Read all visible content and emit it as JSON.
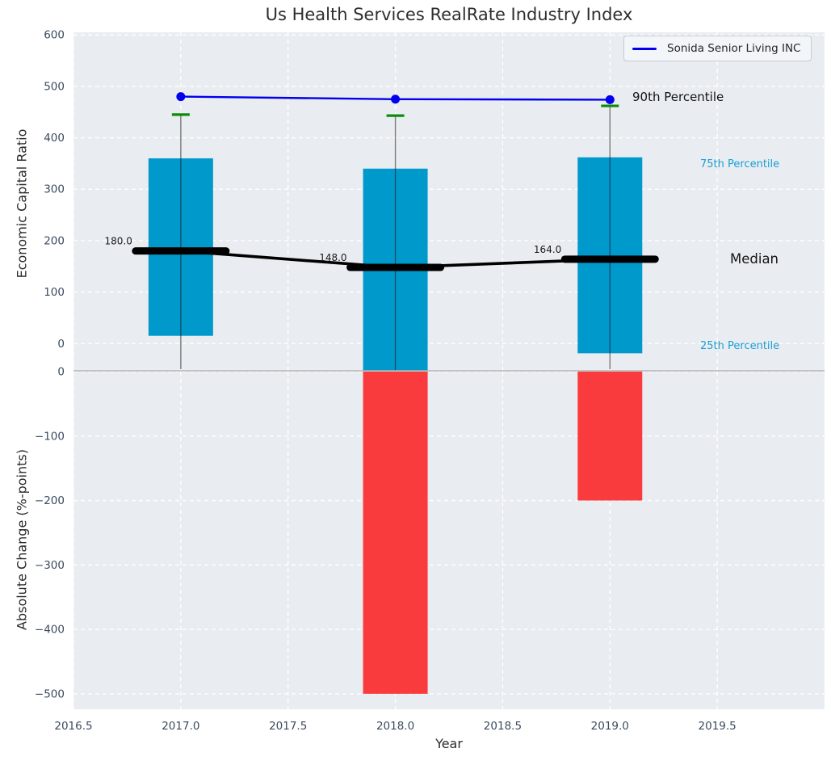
{
  "title": "Us Health Services RealRate Industry Index",
  "legend": {
    "label": "Sonida Senior Living INC"
  },
  "axes": {
    "x": {
      "label": "Year",
      "ticks": [
        "2016.5",
        "2017.0",
        "2017.5",
        "2018.0",
        "2018.5",
        "2019.0",
        "2019.5"
      ],
      "tick_values": [
        2016.5,
        2017,
        2017.5,
        2018,
        2018.5,
        2019,
        2019.5
      ],
      "range": [
        2016.5,
        2020.0
      ]
    },
    "top_y": {
      "label": "Economic Capital Ratio",
      "ticks": [
        "600",
        "500",
        "400",
        "300",
        "200",
        "100",
        "0"
      ],
      "tick_values": [
        600,
        500,
        400,
        300,
        200,
        100,
        0
      ]
    },
    "bottom_y": {
      "label": "Absolute Change (%-points)",
      "ticks": [
        "0",
        "−100",
        "−200",
        "−300",
        "−400",
        "−500"
      ],
      "tick_values": [
        0,
        -100,
        -200,
        -300,
        -400,
        -500
      ]
    }
  },
  "side_annotations": {
    "p90": "90th Percentile",
    "p75": "75th Percentile",
    "median": "Median",
    "p25": "25th Percentile"
  },
  "colors": {
    "box": "#0099cc",
    "box_center_line": "#14506e",
    "bar_negative": "#fa3b3e",
    "company_line": "#0000ee",
    "p90_cap": "#0a8c0a",
    "median_line": "#000000",
    "whisker": "#7a7a7a",
    "plot_bg": "#e9edf1",
    "grid": "#ffffff",
    "boundary": "#b4b4b4",
    "tick_text": "#3b4a5f",
    "percentile_label": "#1a9fd2",
    "annotation_text": "#1a1a1a"
  },
  "chart_data": [
    {
      "type": "box",
      "axis": "top",
      "title": "Us Health Services RealRate Industry Index",
      "x": [
        2017,
        2018,
        2019
      ],
      "series": [
        {
          "name": "Sonida Senior Living INC",
          "role": "company-line",
          "values": [
            480,
            475,
            474
          ]
        },
        {
          "name": "90th Percentile",
          "role": "whisker-cap",
          "values": [
            445,
            443,
            462
          ]
        },
        {
          "name": "75th Percentile",
          "role": "box-top",
          "values": [
            360,
            340,
            362
          ]
        },
        {
          "name": "Median",
          "role": "median",
          "values": [
            180,
            148,
            164
          ],
          "labels": [
            "180.0",
            "148.0",
            "164.0"
          ]
        },
        {
          "name": "25th Percentile",
          "role": "box-bottom",
          "values": [
            15,
            null,
            -19
          ],
          "note": "2018 box bottom clipped below axis"
        }
      ],
      "ylabel": "Economic Capital Ratio",
      "ylim": [
        -53,
        605
      ],
      "grid": "dashed-white",
      "legend_position": "upper right"
    },
    {
      "type": "bar",
      "axis": "bottom",
      "x": [
        2017,
        2018,
        2019
      ],
      "values": [
        null,
        -500,
        -200
      ],
      "ylabel": "Absolute Change (%-points)",
      "xlabel": "Year",
      "ylim": [
        -524,
        0
      ],
      "grid": "dashed-white"
    }
  ]
}
